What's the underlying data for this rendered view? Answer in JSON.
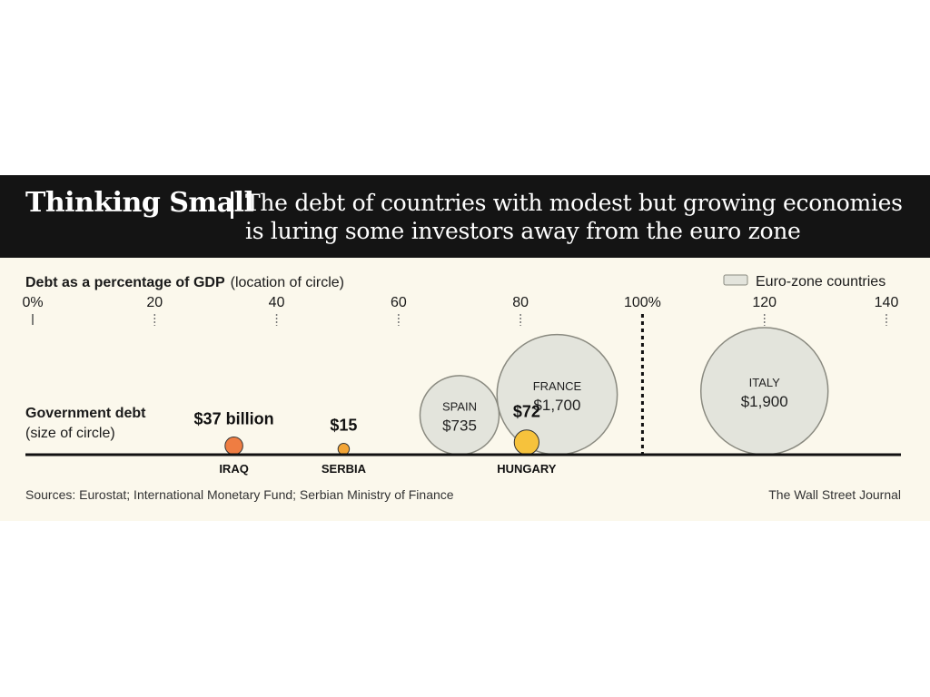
{
  "title": "Thinking Small",
  "subtitle": "The debt of countries with modest but growing economies is luring some investors away from the euro zone",
  "x_axis_title_bold": "Debt as a percentage of GDP",
  "x_axis_title_note": "(location of circle)",
  "size_title_bold": "Government debt",
  "size_title_note": "(size of circle)",
  "legend_label": "Euro-zone countries",
  "source": "Sources: Eurostat; International Monetary Fund; Serbian Ministry of Finance",
  "credit": "The Wall Street Journal",
  "colors": {
    "title_bg": "#141414",
    "panel_bg": "#fbf8ec",
    "eurozone_fill": "#e3e4dc",
    "eurozone_stroke": "#8a8a80",
    "iraq": "#ef7d42",
    "serbia": "#f3a536",
    "hungary": "#f6c23c"
  },
  "chart_data": {
    "type": "bubble",
    "xlim": [
      0,
      140
    ],
    "tick_labels": [
      "0%",
      "20",
      "40",
      "60",
      "80",
      "100%",
      "120",
      "140"
    ],
    "tick_values": [
      0,
      20,
      40,
      60,
      80,
      100,
      120,
      140
    ],
    "reference_line_x": 100,
    "points": [
      {
        "country": "IRAQ",
        "debt_pct_gdp": 33,
        "debt_label": "$37 billion",
        "debt_billion": 37,
        "euro_zone": false
      },
      {
        "country": "SERBIA",
        "debt_pct_gdp": 51,
        "debt_label": "$15",
        "debt_billion": 15,
        "euro_zone": false
      },
      {
        "country": "SPAIN",
        "debt_pct_gdp": 70,
        "debt_label": "$735",
        "debt_billion": 735,
        "euro_zone": true
      },
      {
        "country": "HUNGARY",
        "debt_pct_gdp": 81,
        "debt_label": "$72",
        "debt_billion": 72,
        "euro_zone": false
      },
      {
        "country": "FRANCE",
        "debt_pct_gdp": 86,
        "debt_label": "$1,700",
        "debt_billion": 1700,
        "euro_zone": true
      },
      {
        "country": "ITALY",
        "debt_pct_gdp": 120,
        "debt_label": "$1,900",
        "debt_billion": 1900,
        "euro_zone": true
      }
    ]
  }
}
